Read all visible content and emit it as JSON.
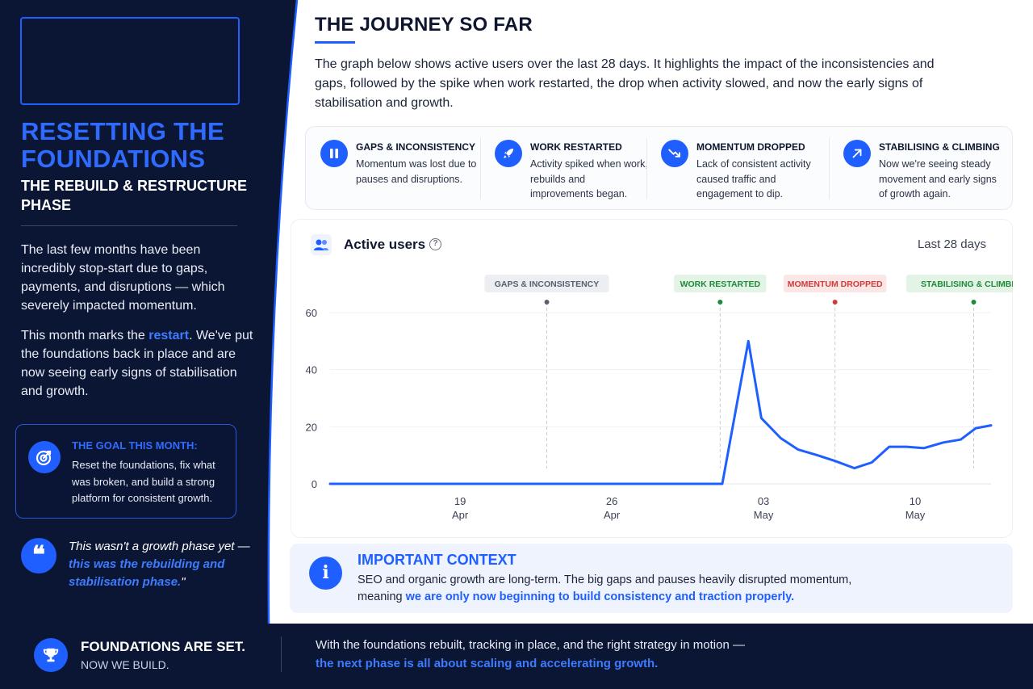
{
  "sidebar": {
    "title": "RESETTING THE FOUNDATIONS",
    "subtitle": "THE REBUILD & RESTRUCTURE PHASE",
    "paragraph1": "The last few months have been incredibly stop-start due to gaps, payments, and disruptions — which severely impacted momentum.",
    "paragraph2_before": "This month marks the ",
    "paragraph2_highlight": "restart",
    "paragraph2_after": ". We've put the foundations back in place and are now seeing early signs of stabilisation and growth.",
    "goal": {
      "title": "THE GOAL THIS MONTH:",
      "text": "Reset the foundations, fix what was broken, and build a strong platform for consistent growth."
    },
    "quote": {
      "before": "This wasn't a growth phase yet — ",
      "highlight": "this was the rebuilding and stabilisation phase.",
      "after": "\""
    }
  },
  "main": {
    "title": "THE JOURNEY SO FAR",
    "intro": "The graph below shows active users over the last 28 days. It highlights the impact of the inconsistencies and gaps, followed by the spike when work restarted, the drop when activity slowed, and now the early signs of stabilisation and growth.",
    "phases": [
      {
        "icon": "pause-icon",
        "title": "GAPS & INCONSISTENCY",
        "desc": "Momentum was lost due to pauses and disruptions."
      },
      {
        "icon": "rocket-icon",
        "title": "WORK RESTARTED",
        "desc": "Activity spiked when work, rebuilds and improvements began."
      },
      {
        "icon": "trend-down-icon",
        "title": "MOMENTUM DROPPED",
        "desc": "Lack of consistent activity caused traffic and engagement to dip."
      },
      {
        "icon": "trend-up-icon",
        "title": "STABILISING & CLIMBING",
        "desc": "Now we're seeing steady movement and early signs of growth again."
      }
    ],
    "chart_header": {
      "title": "Active users",
      "range": "Last 28 days"
    }
  },
  "chart_data": {
    "type": "line",
    "title": "Active users",
    "ylim": [
      0,
      60
    ],
    "y_ticks": [
      0,
      20,
      40,
      60
    ],
    "x_ticks": [
      {
        "day": 6,
        "line1": "19",
        "line2": "Apr"
      },
      {
        "day": 13,
        "line1": "26",
        "line2": "Apr"
      },
      {
        "day": 20,
        "line1": "03",
        "line2": "May"
      },
      {
        "day": 27,
        "line1": "10",
        "line2": "May"
      }
    ],
    "x_start": "Apr 13",
    "series": [
      {
        "color": "#1f5fff",
        "points": [
          [
            0,
            0
          ],
          [
            1,
            0
          ],
          [
            2,
            0
          ],
          [
            3,
            0
          ],
          [
            4,
            0
          ],
          [
            5,
            0
          ],
          [
            6,
            0
          ],
          [
            7,
            0
          ],
          [
            8,
            0
          ],
          [
            9,
            0
          ],
          [
            10,
            0
          ],
          [
            11,
            0
          ],
          [
            12,
            0
          ],
          [
            13,
            0
          ],
          [
            14,
            0
          ],
          [
            15,
            0
          ],
          [
            16,
            0
          ],
          [
            17,
            0
          ],
          [
            18,
            0
          ],
          [
            18.1,
            0
          ],
          [
            19.3,
            50
          ],
          [
            19.9,
            23
          ],
          [
            20.8,
            16
          ],
          [
            21.6,
            12
          ],
          [
            22.5,
            10
          ],
          [
            23.3,
            8
          ],
          [
            24.2,
            5.5
          ],
          [
            25.0,
            7.5
          ],
          [
            25.8,
            13
          ],
          [
            26.6,
            13
          ],
          [
            27.4,
            12.5
          ],
          [
            28.3,
            14.5
          ],
          [
            29.1,
            15.5
          ],
          [
            29.8,
            19.5
          ],
          [
            30.5,
            20.5
          ]
        ]
      }
    ],
    "annotations": [
      {
        "label": "GAPS & INCONSISTENCY",
        "day": 10,
        "color": "#5a6070",
        "bg": "#eceef2"
      },
      {
        "label": "WORK RESTARTED",
        "day": 18,
        "color": "#1e8a3a",
        "bg": "#e3f4e6"
      },
      {
        "label": "MOMENTUM DROPPED",
        "day": 23.3,
        "color": "#d23b3b",
        "bg": "#fbe6e6"
      },
      {
        "label": "STABILISING & CLIMBING",
        "day": 29.7,
        "color": "#1e8a3a",
        "bg": "#e3f4e6"
      }
    ]
  },
  "context": {
    "title": "IMPORTANT CONTEXT",
    "text_before": "SEO and organic growth are long-term. The big gaps and pauses heavily disrupted momentum, meaning ",
    "text_highlight": "we are only now beginning to build consistency and traction properly."
  },
  "footer": {
    "title": "FOUNDATIONS ARE SET.",
    "subtitle": "NOW WE BUILD.",
    "line1": "With the foundations rebuilt, tracking in place, and the right strategy in motion —",
    "line2": "the next phase is all about scaling and accelerating growth."
  },
  "colors": {
    "navy": "#0b1634",
    "accent": "#1f5fff",
    "highlight": "#3d7bff"
  }
}
